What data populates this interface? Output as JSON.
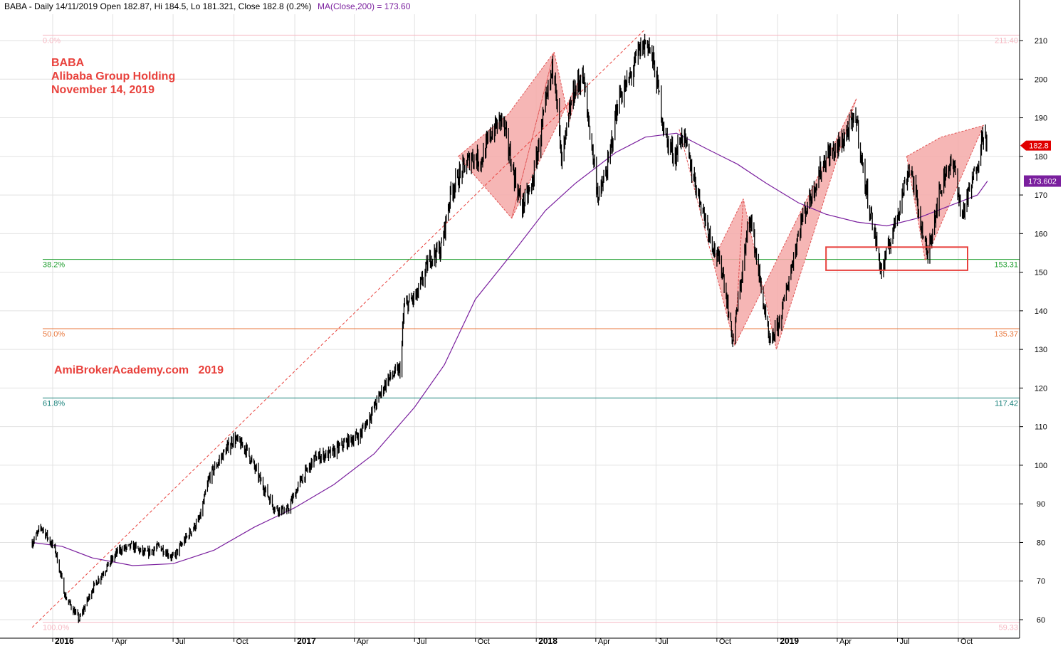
{
  "header": {
    "main": "BABA - Daily 14/11/2019 Open 182.87, Hi 184.5, Lo 181.321, Close 182.8 (0.2%)",
    "ma": "MA(Close,200) = 173.60"
  },
  "annotations": {
    "ticker": "BABA",
    "company": "Alibaba Group Holding",
    "date": "November 14, 2019",
    "watermark": "AmiBrokerAcademy.com   2019"
  },
  "colors": {
    "price": "#000000",
    "ma": "#7a1f9e",
    "harmonic_fill": "#f4a9a8",
    "harmonic_edge": "#e05555",
    "fib_0": "#f6b8c2",
    "fib_382": "#1e9e2e",
    "fib_50": "#e8773c",
    "fib_618": "#17807a",
    "fib_100": "#f6b8c2",
    "box": "#e8413c",
    "last_price_tag": "#e00000",
    "ma_tag": "#7a1f9e"
  },
  "chart_data": {
    "type": "candlestick",
    "y_axis": {
      "range": [
        58,
        213
      ],
      "ticks": [
        "60",
        "70",
        "80",
        "90",
        "100",
        "110",
        "120",
        "130",
        "140",
        "150",
        "160",
        "170",
        "180",
        "190",
        "200",
        "210"
      ],
      "position": "right"
    },
    "x_axis": {
      "ticks": [
        {
          "label": "2016",
          "date": "2016-01",
          "bold": true
        },
        {
          "label": "Apr",
          "date": "2016-04"
        },
        {
          "label": "Jul",
          "date": "2016-07"
        },
        {
          "label": "Oct",
          "date": "2016-10"
        },
        {
          "label": "2017",
          "date": "2017-01",
          "bold": true
        },
        {
          "label": "Apr",
          "date": "2017-04"
        },
        {
          "label": "Jul",
          "date": "2017-07"
        },
        {
          "label": "Oct",
          "date": "2017-10"
        },
        {
          "label": "2018",
          "date": "2018-01",
          "bold": true
        },
        {
          "label": "Apr",
          "date": "2018-04"
        },
        {
          "label": "Jul",
          "date": "2018-07"
        },
        {
          "label": "Oct",
          "date": "2018-10"
        },
        {
          "label": "2019",
          "date": "2019-01",
          "bold": true
        },
        {
          "label": "Apr",
          "date": "2019-04"
        },
        {
          "label": "Jul",
          "date": "2019-07"
        },
        {
          "label": "Oct",
          "date": "2019-10"
        }
      ]
    },
    "price_series": [
      [
        "2015-12-01",
        80
      ],
      [
        "2015-12-15",
        84
      ],
      [
        "2016-01-05",
        78
      ],
      [
        "2016-01-20",
        66
      ],
      [
        "2016-02-10",
        60
      ],
      [
        "2016-03-01",
        68
      ],
      [
        "2016-03-20",
        73
      ],
      [
        "2016-04-10",
        78
      ],
      [
        "2016-05-01",
        79
      ],
      [
        "2016-05-20",
        77
      ],
      [
        "2016-06-10",
        79
      ],
      [
        "2016-07-01",
        76
      ],
      [
        "2016-07-20",
        81
      ],
      [
        "2016-08-10",
        86
      ],
      [
        "2016-08-25",
        97
      ],
      [
        "2016-09-15",
        103
      ],
      [
        "2016-10-01",
        107
      ],
      [
        "2016-10-20",
        104
      ],
      [
        "2016-11-10",
        96
      ],
      [
        "2016-12-01",
        89
      ],
      [
        "2016-12-20",
        88
      ],
      [
        "2017-01-10",
        96
      ],
      [
        "2017-02-01",
        102
      ],
      [
        "2017-02-25",
        103
      ],
      [
        "2017-03-20",
        106
      ],
      [
        "2017-04-10",
        108
      ],
      [
        "2017-05-01",
        115
      ],
      [
        "2017-05-20",
        122
      ],
      [
        "2017-06-10",
        125
      ],
      [
        "2017-06-15",
        141
      ],
      [
        "2017-07-05",
        144
      ],
      [
        "2017-07-25",
        154
      ],
      [
        "2017-08-10",
        156
      ],
      [
        "2017-08-25",
        171
      ],
      [
        "2017-09-10",
        176
      ],
      [
        "2017-09-25",
        180
      ],
      [
        "2017-10-10",
        179
      ],
      [
        "2017-10-25",
        186
      ],
      [
        "2017-11-10",
        190
      ],
      [
        "2017-11-30",
        174
      ],
      [
        "2017-12-10",
        167
      ],
      [
        "2017-12-25",
        172
      ],
      [
        "2018-01-10",
        188
      ],
      [
        "2018-01-28",
        205
      ],
      [
        "2018-02-08",
        178
      ],
      [
        "2018-02-25",
        196
      ],
      [
        "2018-03-12",
        201
      ],
      [
        "2018-03-25",
        184
      ],
      [
        "2018-04-05",
        169
      ],
      [
        "2018-04-20",
        178
      ],
      [
        "2018-05-05",
        195
      ],
      [
        "2018-05-20",
        199
      ],
      [
        "2018-06-05",
        207
      ],
      [
        "2018-06-18",
        210
      ],
      [
        "2018-06-30",
        202
      ],
      [
        "2018-07-15",
        185
      ],
      [
        "2018-07-30",
        180
      ],
      [
        "2018-08-10",
        186
      ],
      [
        "2018-08-25",
        176
      ],
      [
        "2018-09-10",
        166
      ],
      [
        "2018-09-25",
        157
      ],
      [
        "2018-10-10",
        150
      ],
      [
        "2018-10-25",
        132
      ],
      [
        "2018-11-05",
        146
      ],
      [
        "2018-11-20",
        165
      ],
      [
        "2018-12-05",
        148
      ],
      [
        "2018-12-20",
        131
      ],
      [
        "2019-01-05",
        138
      ],
      [
        "2019-01-20",
        150
      ],
      [
        "2019-02-05",
        163
      ],
      [
        "2019-02-25",
        172
      ],
      [
        "2019-03-15",
        180
      ],
      [
        "2019-04-01",
        182
      ],
      [
        "2019-04-15",
        186
      ],
      [
        "2019-04-30",
        190
      ],
      [
        "2019-05-10",
        176
      ],
      [
        "2019-05-25",
        162
      ],
      [
        "2019-06-07",
        150
      ],
      [
        "2019-06-20",
        158
      ],
      [
        "2019-07-05",
        168
      ],
      [
        "2019-07-20",
        178
      ],
      [
        "2019-08-05",
        163
      ],
      [
        "2019-08-15",
        154
      ],
      [
        "2019-08-30",
        168
      ],
      [
        "2019-09-15",
        178
      ],
      [
        "2019-09-28",
        176
      ],
      [
        "2019-10-05",
        164
      ],
      [
        "2019-10-20",
        172
      ],
      [
        "2019-11-01",
        180
      ],
      [
        "2019-11-08",
        187
      ],
      [
        "2019-11-14",
        182.8
      ]
    ],
    "ma_series": [
      [
        "2015-12-01",
        80
      ],
      [
        "2016-01-15",
        79
      ],
      [
        "2016-03-01",
        76
      ],
      [
        "2016-05-01",
        74
      ],
      [
        "2016-07-01",
        74.5
      ],
      [
        "2016-09-01",
        78
      ],
      [
        "2016-11-01",
        84
      ],
      [
        "2017-01-01",
        89
      ],
      [
        "2017-03-01",
        95
      ],
      [
        "2017-05-01",
        103
      ],
      [
        "2017-07-01",
        115
      ],
      [
        "2017-08-15",
        126
      ],
      [
        "2017-10-01",
        143
      ],
      [
        "2017-12-01",
        156
      ],
      [
        "2018-01-15",
        166
      ],
      [
        "2018-03-01",
        173
      ],
      [
        "2018-05-01",
        181
      ],
      [
        "2018-06-15",
        185
      ],
      [
        "2018-08-01",
        186
      ],
      [
        "2018-09-15",
        182
      ],
      [
        "2018-11-01",
        178
      ],
      [
        "2018-12-15",
        173
      ],
      [
        "2019-02-01",
        168
      ],
      [
        "2019-03-15",
        165
      ],
      [
        "2019-05-01",
        163
      ],
      [
        "2019-06-15",
        162
      ],
      [
        "2019-08-01",
        164
      ],
      [
        "2019-09-15",
        167
      ],
      [
        "2019-10-30",
        170
      ],
      [
        "2019-11-14",
        173.6
      ]
    ],
    "harmonic_patterns": [
      {
        "points": [
          [
            "2017-09-05",
            180
          ],
          [
            "2017-11-20",
            191
          ],
          [
            "2018-01-28",
            207
          ],
          [
            "2017-11-25",
            164
          ],
          [
            "2017-09-05",
            180
          ]
        ]
      },
      {
        "points": [
          [
            "2017-11-25",
            164
          ],
          [
            "2018-01-28",
            207
          ],
          [
            "2018-02-20",
            189
          ],
          [
            "2018-03-10",
            201
          ],
          [
            "2017-11-25",
            164
          ]
        ]
      },
      {
        "points": [
          [
            "2018-08-05",
            187
          ],
          [
            "2018-09-25",
            153
          ],
          [
            "2018-11-10",
            169
          ],
          [
            "2018-10-28",
            131
          ],
          [
            "2018-08-05",
            187
          ]
        ]
      },
      {
        "points": [
          [
            "2018-10-28",
            131
          ],
          [
            "2018-11-10",
            169
          ],
          [
            "2018-12-30",
            130
          ],
          [
            "2019-04-30",
            195
          ],
          [
            "2018-10-28",
            131
          ]
        ]
      },
      {
        "points": [
          [
            "2019-07-15",
            180
          ],
          [
            "2019-09-05",
            185
          ],
          [
            "2019-11-08",
            188
          ],
          [
            "2019-08-12",
            153
          ],
          [
            "2019-07-15",
            180
          ]
        ]
      }
    ],
    "trendline": {
      "from": [
        "2015-12-01",
        58
      ],
      "to": [
        "2018-06-15",
        213
      ]
    },
    "fib_levels": [
      {
        "pct": "0.0%",
        "value": 211.4,
        "label": "211.40",
        "color_key": "fib_0"
      },
      {
        "pct": "38.2%",
        "value": 153.31,
        "label": "153.31",
        "color_key": "fib_382"
      },
      {
        "pct": "50.0%",
        "value": 135.37,
        "label": "135.37",
        "color_key": "fib_50"
      },
      {
        "pct": "61.8%",
        "value": 117.42,
        "label": "117.42",
        "color_key": "fib_618"
      },
      {
        "pct": "100.0%",
        "value": 59.33,
        "label": "59.33",
        "color_key": "fib_100"
      }
    ],
    "box": {
      "from": [
        "2019-03-15",
        156.5
      ],
      "to": [
        "2019-10-15",
        150.5
      ]
    },
    "last_price": {
      "value": 182.8,
      "label": "182.8"
    },
    "ma_last": {
      "value": 173.602,
      "label": "173.602"
    },
    "grid": true
  }
}
